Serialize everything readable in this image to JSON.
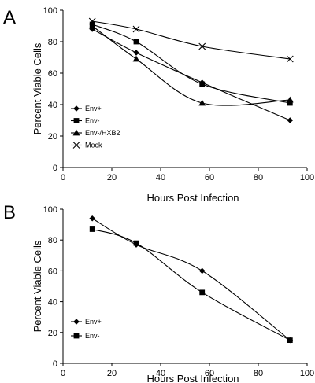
{
  "chart_data": [
    {
      "panel": "A",
      "type": "line",
      "xlabel": "Hours Post Infection",
      "ylabel": "Percent Viable Cells",
      "xlim": [
        0,
        100
      ],
      "ylim": [
        0,
        100
      ],
      "xticks": [
        "0",
        "20",
        "40",
        "60",
        "80",
        "100"
      ],
      "yticks": [
        "0",
        "20",
        "40",
        "60",
        "80",
        "100"
      ],
      "legend_position": "bottom-left",
      "series": [
        {
          "name": "Env+",
          "marker": "diamond",
          "x": [
            12,
            30,
            57,
            93
          ],
          "y": [
            88,
            73,
            54,
            30
          ]
        },
        {
          "name": "Env-",
          "marker": "square",
          "x": [
            12,
            30,
            57,
            93
          ],
          "y": [
            91,
            80,
            53,
            41
          ]
        },
        {
          "name": "Env-/HXB2",
          "marker": "triangle",
          "x": [
            12,
            30,
            57,
            93
          ],
          "y": [
            90,
            69,
            41,
            43
          ]
        },
        {
          "name": "Mock",
          "marker": "x",
          "x": [
            12,
            30,
            57,
            93
          ],
          "y": [
            93,
            88,
            77,
            69
          ]
        }
      ]
    },
    {
      "panel": "B",
      "type": "line",
      "xlabel": "Hours Post Infection",
      "ylabel": "Percent Viable Cells",
      "xlim": [
        0,
        100
      ],
      "ylim": [
        0,
        100
      ],
      "xticks": [
        "0",
        "20",
        "40",
        "60",
        "80",
        "100"
      ],
      "yticks": [
        "0",
        "20",
        "40",
        "60",
        "80",
        "100"
      ],
      "legend_position": "bottom-left",
      "series": [
        {
          "name": "Env+",
          "marker": "diamond",
          "x": [
            12,
            30,
            57,
            93
          ],
          "y": [
            94,
            77,
            60,
            15
          ]
        },
        {
          "name": "Env-",
          "marker": "square",
          "x": [
            12,
            30,
            57,
            93
          ],
          "y": [
            87,
            78,
            46,
            15
          ]
        }
      ]
    }
  ]
}
